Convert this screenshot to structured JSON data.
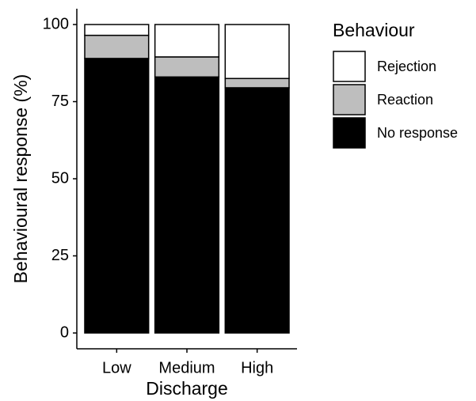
{
  "chart_data": {
    "type": "stacked_bar",
    "xlabel": "Discharge",
    "ylabel": "Behavioural response (%)",
    "legend_title": "Behaviour",
    "categories": [
      "Low",
      "Medium",
      "High"
    ],
    "series": [
      {
        "name": "No response",
        "color": "#000000",
        "values": [
          89,
          83,
          79.5
        ]
      },
      {
        "name": "Reaction",
        "color": "#bebebe",
        "values": [
          7.5,
          6.5,
          3
        ]
      },
      {
        "name": "Rejection",
        "color": "#ffffff",
        "values": [
          3.5,
          10.5,
          17.5
        ]
      }
    ],
    "ylim": [
      0,
      100
    ],
    "yticks": [
      0,
      25,
      50,
      75,
      100
    ],
    "legend_position": "right"
  }
}
